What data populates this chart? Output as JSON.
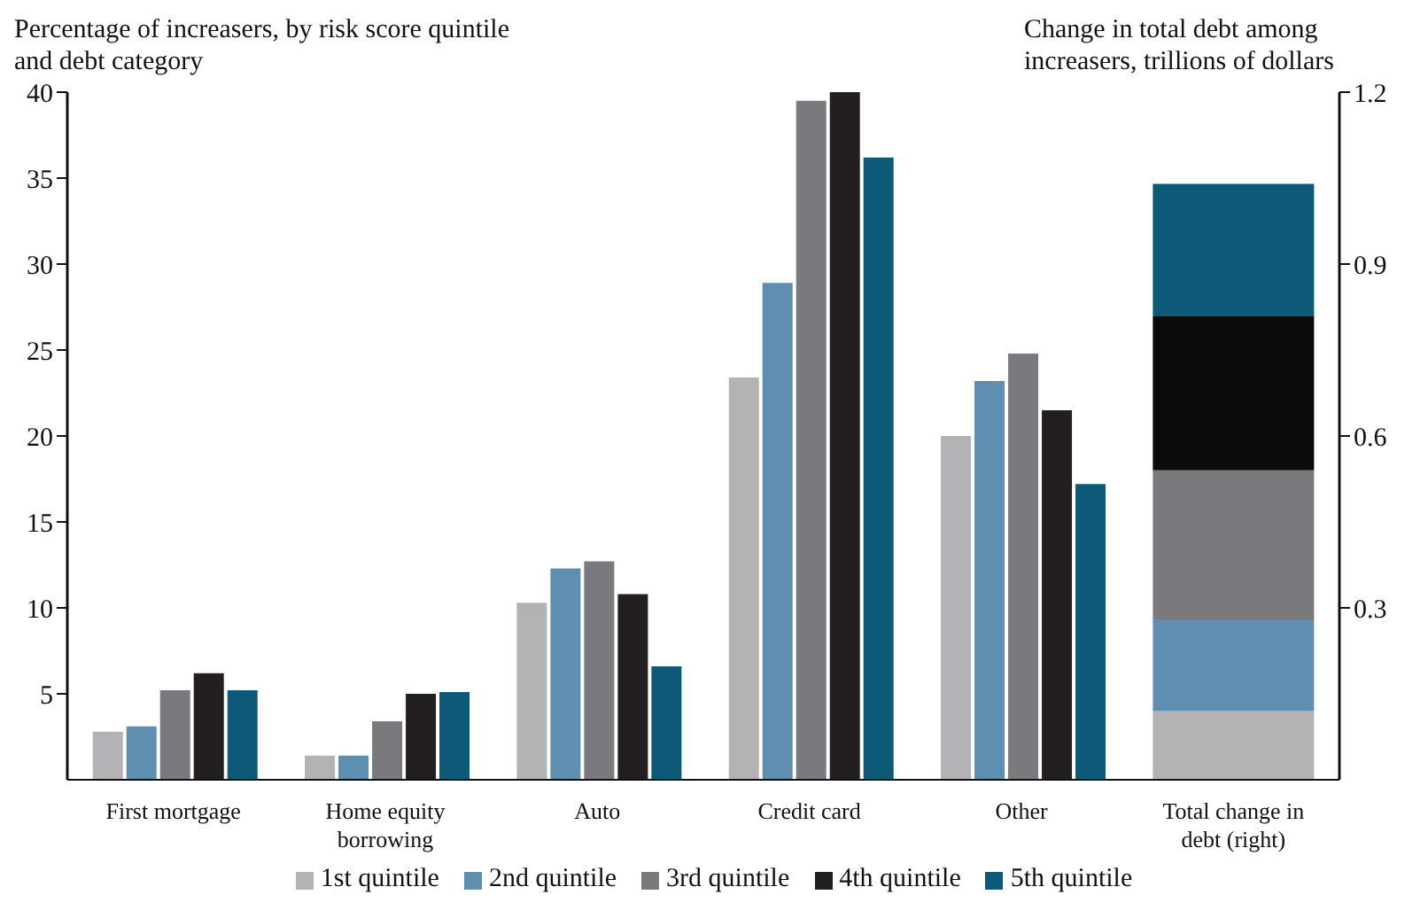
{
  "chart_data": {
    "type": "bar",
    "ylabel": "Percentage of increasers, by risk score quintile and debt category",
    "y2label": "Change in total debt among increasers, trillions of dollars",
    "categories": [
      "First mortgage",
      "Home equity borrowing",
      "Auto",
      "Credit card",
      "Other",
      "Total change in debt (right)"
    ],
    "series": [
      {
        "name": "1st quintile",
        "color": "#b3b3b6",
        "values": [
          2.8,
          1.4,
          10.3,
          23.4,
          20.0,
          null
        ]
      },
      {
        "name": "2nd quintile",
        "color": "#5e8fb0",
        "values": [
          3.1,
          1.4,
          12.3,
          28.9,
          23.2,
          null
        ]
      },
      {
        "name": "3rd quintile",
        "color": "#7a7a7e",
        "values": [
          5.2,
          3.4,
          12.7,
          39.5,
          24.8,
          null
        ]
      },
      {
        "name": "4th quintile",
        "color": "#231f20",
        "values": [
          6.2,
          5.0,
          10.8,
          40.0,
          21.5,
          null
        ]
      },
      {
        "name": "5th quintile",
        "color": "#0d5a78",
        "values": [
          5.2,
          5.1,
          6.6,
          36.2,
          17.2,
          null
        ]
      },
      {
        "color": "#b3b3b6",
        "axis": "y2",
        "base": [
          null,
          null,
          null,
          null,
          null,
          0
        ],
        "values": [
          null,
          null,
          null,
          null,
          null,
          0.12
        ]
      },
      {
        "color": "#5e8fb0",
        "axis": "y2",
        "base": [
          null,
          null,
          null,
          null,
          null,
          0.12
        ],
        "values": [
          null,
          null,
          null,
          null,
          null,
          0.16
        ]
      },
      {
        "color": "#7a7a7e",
        "axis": "y2",
        "base": [
          null,
          null,
          null,
          null,
          null,
          0.28
        ],
        "values": [
          null,
          null,
          null,
          null,
          null,
          0.26
        ]
      },
      {
        "color": "#0b0b0b",
        "axis": "y2",
        "base": [
          null,
          null,
          null,
          null,
          null,
          0.54
        ],
        "values": [
          null,
          null,
          null,
          null,
          null,
          0.27
        ]
      },
      {
        "color": "#0d5a78",
        "axis": "y2",
        "base": [
          null,
          null,
          null,
          null,
          null,
          0.81
        ],
        "values": [
          null,
          null,
          null,
          null,
          null,
          0.23
        ]
      }
    ],
    "ylim": [
      0,
      40
    ],
    "yticks": [
      5,
      10,
      15,
      20,
      25,
      30,
      35,
      40
    ],
    "y2lim": [
      0,
      1.2
    ],
    "y2ticks": [
      0.3,
      0.6,
      0.9,
      1.2
    ],
    "grid": false,
    "legend": "bottom"
  }
}
